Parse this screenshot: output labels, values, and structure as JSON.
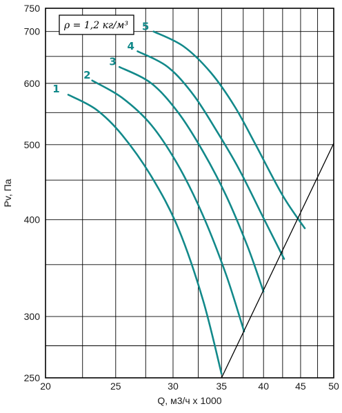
{
  "chart_data": {
    "type": "line",
    "xlabel": "Q, м3/ч х 1000",
    "ylabel": "Pv, Па",
    "x_scale": "log",
    "y_scale": "log",
    "xlim": [
      20,
      50
    ],
    "ylim": [
      250,
      750
    ],
    "x_ticks": [
      20,
      25,
      30,
      35,
      40,
      45,
      50
    ],
    "y_ticks": [
      250,
      300,
      400,
      500,
      600,
      700,
      750
    ],
    "x_gridlines": [
      20,
      22.5,
      25,
      27.5,
      30,
      32.5,
      35,
      37.5,
      40,
      42.5,
      45,
      47.5,
      50
    ],
    "y_gridlines": [
      250,
      275,
      300,
      350,
      400,
      450,
      500,
      550,
      600,
      650,
      700,
      750
    ],
    "grid": true,
    "legend_text": "ρ = 1,2 кг/м³",
    "legend_position": "top-left",
    "curve_color": "#12898a",
    "limit_line_color": "#000000",
    "series": [
      {
        "name": "1",
        "x": [
          21.5,
          23.5,
          25.5,
          28.0,
          30.5,
          33.0,
          35.0
        ],
        "y": [
          580,
          555,
          515,
          455,
          390,
          315,
          253
        ]
      },
      {
        "name": "2",
        "x": [
          23.2,
          25.5,
          28.0,
          30.5,
          33.0,
          35.5,
          37.6
        ],
        "y": [
          605,
          575,
          530,
          470,
          405,
          340,
          287
        ]
      },
      {
        "name": "3",
        "x": [
          25.3,
          28.0,
          30.5,
          33.0,
          35.5,
          38.0,
          40.0
        ],
        "y": [
          630,
          600,
          550,
          490,
          430,
          370,
          323
        ]
      },
      {
        "name": "4",
        "x": [
          26.8,
          29.5,
          32.0,
          34.5,
          37.0,
          40.0,
          42.7
        ],
        "y": [
          660,
          630,
          580,
          520,
          465,
          402,
          356
        ]
      },
      {
        "name": "5",
        "x": [
          28.2,
          31.0,
          33.8,
          36.5,
          39.0,
          42.5,
          45.6
        ],
        "y": [
          700,
          670,
          620,
          560,
          500,
          430,
          390
        ]
      },
      {
        "name": "",
        "x": [
          35.0,
          50.0
        ],
        "y": [
          250,
          502
        ]
      }
    ],
    "curve_labels": [
      {
        "text": "1",
        "x": 21.3,
        "y": 590
      },
      {
        "text": "2",
        "x": 23.5,
        "y": 615
      },
      {
        "text": "3",
        "x": 25.5,
        "y": 640
      },
      {
        "text": "4",
        "x": 27.0,
        "y": 670
      },
      {
        "text": "5",
        "x": 28.3,
        "y": 710
      }
    ]
  }
}
